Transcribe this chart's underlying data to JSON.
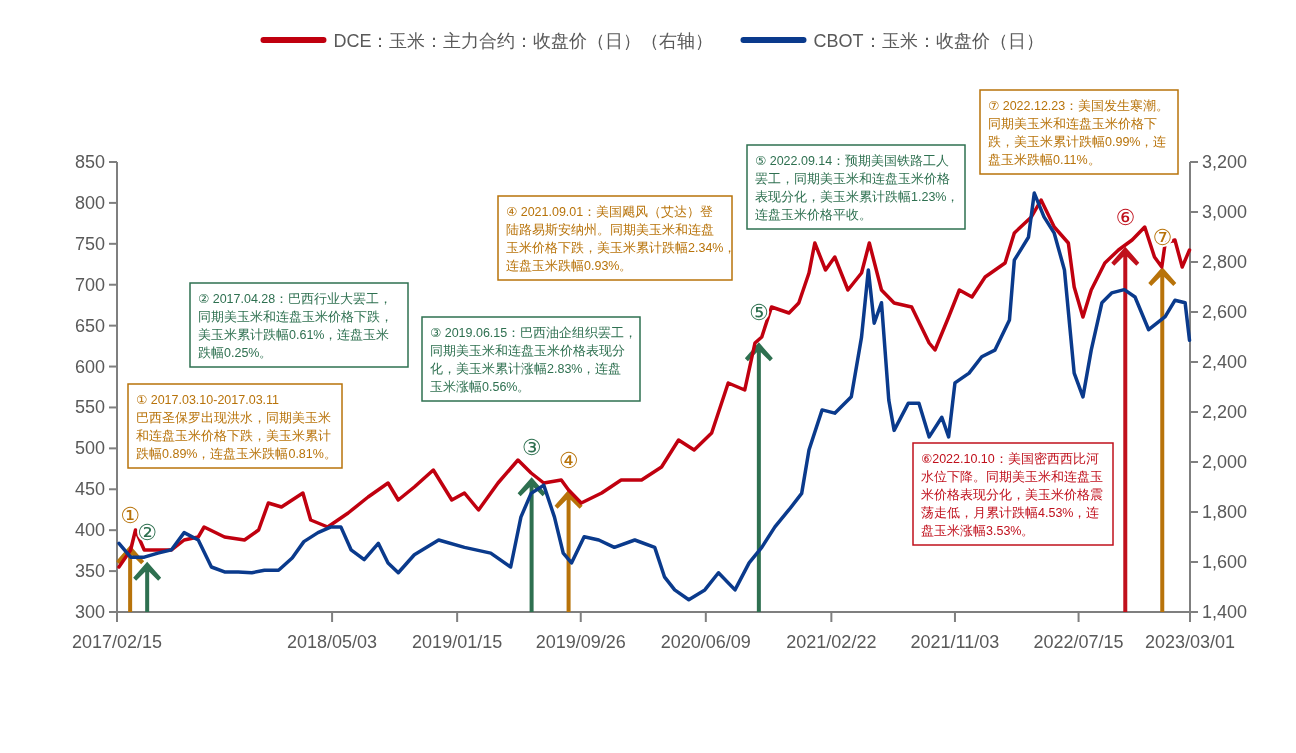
{
  "chart_data": {
    "type": "line",
    "legend": "top",
    "xlim": [
      "2017-02-15",
      "2023-03-01"
    ],
    "xticks": [
      {
        "value": "2017-02-15",
        "label": "2017/02/15"
      },
      {
        "value": "2018-05-03",
        "label": "2018/05/03"
      },
      {
        "value": "2019-01-15",
        "label": "2019/01/15"
      },
      {
        "value": "2019-09-26",
        "label": "2019/09/26"
      },
      {
        "value": "2020-06-09",
        "label": "2020/06/09"
      },
      {
        "value": "2021-02-22",
        "label": "2021/02/22"
      },
      {
        "value": "2021-11-03",
        "label": "2021/11/03"
      },
      {
        "value": "2022-07-15",
        "label": "2022/07/15"
      },
      {
        "value": "2023-03-01",
        "label": "2023/03/01"
      }
    ],
    "ylim": [
      300,
      850
    ],
    "yticks": [
      300,
      350,
      400,
      450,
      500,
      550,
      600,
      650,
      700,
      750,
      800,
      850
    ],
    "y2lim": [
      1400,
      3200
    ],
    "y2ticks": [
      {
        "value": 1400,
        "label": "1,400"
      },
      {
        "value": 1600,
        "label": "1,600"
      },
      {
        "value": 1800,
        "label": "1,800"
      },
      {
        "value": 2000,
        "label": "2,000"
      },
      {
        "value": 2200,
        "label": "2,200"
      },
      {
        "value": 2400,
        "label": "2,400"
      },
      {
        "value": 2600,
        "label": "2,600"
      },
      {
        "value": 2800,
        "label": "2,800"
      },
      {
        "value": 3000,
        "label": "3,000"
      },
      {
        "value": 3200,
        "label": "3,200"
      }
    ],
    "series": [
      {
        "name": "DCE：玉米：主力合约：收盘价（日）（右轴）",
        "color": "#c0000f",
        "axis": "y2",
        "x": [
          "2017-02-19",
          "2017-03-15",
          "2017-03-25",
          "2017-04-12",
          "2017-05-10",
          "2017-06-07",
          "2017-07-03",
          "2017-08-01",
          "2017-08-13",
          "2017-09-24",
          "2017-11-04",
          "2017-12-03",
          "2017-12-23",
          "2018-01-19",
          "2018-03-04",
          "2018-03-20",
          "2018-04-24",
          "2018-06-05",
          "2018-07-16",
          "2018-08-26",
          "2018-09-16",
          "2018-10-19",
          "2018-11-27",
          "2019-01-04",
          "2019-01-30",
          "2019-02-28",
          "2019-04-09",
          "2019-05-20",
          "2019-06-16",
          "2019-07-12",
          "2019-08-17",
          "2019-09-01",
          "2019-09-27",
          "2019-11-08",
          "2019-12-18",
          "2020-01-29",
          "2020-03-10",
          "2020-04-14",
          "2020-05-16",
          "2020-06-21",
          "2020-07-25",
          "2020-08-28",
          "2020-09-18",
          "2020-10-02",
          "2020-10-22",
          "2020-11-27",
          "2020-12-17",
          "2021-01-07",
          "2021-01-19",
          "2021-02-10",
          "2021-03-01",
          "2021-03-28",
          "2021-04-25",
          "2021-05-11",
          "2021-06-05",
          "2021-07-01",
          "2021-08-06",
          "2021-09-11",
          "2021-09-23",
          "2021-10-21",
          "2021-11-12",
          "2021-12-08",
          "2022-01-04",
          "2022-02-14",
          "2022-03-05",
          "2022-04-09",
          "2022-04-29",
          "2022-05-26",
          "2022-06-24",
          "2022-07-06",
          "2022-07-24",
          "2022-08-10",
          "2022-09-07",
          "2022-10-05",
          "2022-11-02",
          "2022-11-28",
          "2022-12-18",
          "2023-01-02",
          "2023-01-09",
          "2023-01-29",
          "2023-02-13",
          "2023-02-28"
        ],
        "values": [
          1580,
          1648,
          1728,
          1648,
          1648,
          1648,
          1688,
          1700,
          1740,
          1700,
          1688,
          1728,
          1836,
          1820,
          1876,
          1768,
          1740,
          1796,
          1860,
          1916,
          1848,
          1900,
          1968,
          1848,
          1876,
          1808,
          1916,
          2008,
          1956,
          1916,
          1928,
          1888,
          1836,
          1876,
          1928,
          1928,
          1980,
          2088,
          2048,
          2116,
          2316,
          2288,
          2476,
          2500,
          2620,
          2596,
          2636,
          2756,
          2876,
          2768,
          2820,
          2688,
          2756,
          2876,
          2688,
          2636,
          2620,
          2476,
          2448,
          2580,
          2688,
          2660,
          2740,
          2796,
          2916,
          2980,
          3048,
          2940,
          2876,
          2700,
          2580,
          2688,
          2796,
          2848,
          2888,
          2940,
          2820,
          2780,
          2876,
          2888,
          2780,
          2848
        ]
      },
      {
        "name": "CBOT：玉米：收盘价（日）",
        "color": "#0a3a8c",
        "x": [
          "2017-02-19",
          "2017-03-15",
          "2017-04-12",
          "2017-05-10",
          "2017-06-07",
          "2017-07-03",
          "2017-08-01",
          "2017-08-28",
          "2017-09-24",
          "2017-10-22",
          "2017-11-19",
          "2017-12-15",
          "2018-01-13",
          "2018-02-10",
          "2018-03-06",
          "2018-04-04",
          "2018-05-01",
          "2018-05-21",
          "2018-06-11",
          "2018-07-08",
          "2018-08-06",
          "2018-08-26",
          "2018-09-16",
          "2018-10-19",
          "2018-12-08",
          "2019-01-30",
          "2019-03-25",
          "2019-05-05",
          "2019-05-26",
          "2019-06-16",
          "2019-07-12",
          "2019-08-03",
          "2019-08-21",
          "2019-09-07",
          "2019-10-03",
          "2019-11-02",
          "2019-12-04",
          "2020-01-15",
          "2020-02-25",
          "2020-03-16",
          "2020-04-06",
          "2020-05-05",
          "2020-06-07",
          "2020-07-05",
          "2020-08-08",
          "2020-09-06",
          "2020-10-02",
          "2020-10-29",
          "2020-11-27",
          "2020-12-23",
          "2021-01-07",
          "2021-02-03",
          "2021-03-01",
          "2021-04-04",
          "2021-04-25",
          "2021-05-09",
          "2021-05-21",
          "2021-06-05",
          "2021-06-20",
          "2021-07-01",
          "2021-07-30",
          "2021-08-21",
          "2021-09-11",
          "2021-10-07",
          "2021-10-21",
          "2021-11-03",
          "2021-12-02",
          "2021-12-28",
          "2022-01-24",
          "2022-02-23",
          "2022-03-05",
          "2022-04-03",
          "2022-04-15",
          "2022-05-05",
          "2022-05-26",
          "2022-06-16",
          "2022-07-06",
          "2022-07-24",
          "2022-08-10",
          "2022-09-01",
          "2022-09-21",
          "2022-10-17",
          "2022-11-08",
          "2022-12-06",
          "2023-01-09",
          "2023-01-29",
          "2023-02-19",
          "2023-02-28"
        ],
        "values": [
          384,
          367,
          367,
          372,
          376,
          397,
          388,
          355,
          349,
          349,
          348,
          351,
          351,
          366,
          386,
          397,
          404,
          404,
          376,
          364,
          384,
          360,
          348,
          370,
          388,
          379,
          372,
          355,
          416,
          445,
          455,
          416,
          372,
          360,
          392,
          388,
          379,
          388,
          379,
          343,
          327,
          315,
          327,
          348,
          327,
          360,
          379,
          404,
          425,
          445,
          498,
          547,
          543,
          563,
          636,
          718,
          653,
          678,
          559,
          522,
          555,
          555,
          514,
          538,
          514,
          580,
          592,
          612,
          620,
          657,
          730,
          758,
          812,
          783,
          763,
          718,
          592,
          563,
          620,
          678,
          690,
          694,
          685,
          645,
          661,
          681,
          678,
          632
        ]
      }
    ],
    "annotations": [
      "① 2017.03.10-2017.03.11\n巴西圣保罗出现洪水，同期美玉米和连盘玉米价格下跌，美玉米累计跌幅0.89%，连盘玉米跌幅0.81%。",
      "② 2017.04.28：巴西行业大罢工，同期美玉米和连盘玉米价格下跌，美玉米累计跌幅0.61%，连盘玉米跌幅0.25%。",
      "③ 2019.06.15：巴西油企组织罢工，同期美玉米和连盘玉米价格表现分化，美玉米累计涨幅2.83%，连盘玉米涨幅0.56%。",
      "④ 2021.09.01：美国飓风（艾达）登陆路易斯安纳州。同期美玉米和连盘玉米价格下跌，美玉米累计跌幅2.34%，连盘玉米跌幅0.93%。",
      "⑤ 2022.09.14：预期美国铁路工人罢工，同期美玉米和连盘玉米价格表现分化，美玉米累计跌幅1.23%，连盘玉米价格平收。",
      "⑥2022.10.10：美国密西西比河水位下降。同期美玉米和连盘玉米价格表现分化，美玉米价格震荡走低，月累计跌幅4.53%，连盘玉米涨幅3.53%。",
      "⑦ 2022.12.23：美国发生寒潮。同期美玉米和连盘玉米价格下跌，美玉米累计跌幅0.99%，连盘玉米跌幅0.11%。",
      {
        "text": "①",
        "x": "2017-03-14",
        "y": 384
      },
      {
        "text": "②",
        "x": "2017-04-18",
        "y": 364
      },
      {
        "text": "③",
        "x": "2019-06-17",
        "y": 467
      },
      {
        "text": "④",
        "x": "2019-09-01",
        "y": 452
      },
      {
        "text": "⑤",
        "x": "2020-09-26",
        "y": 632
      },
      {
        "text": "⑥",
        "x": "2022-10-19",
        "y": 749
      },
      {
        "text": "⑦",
        "x": "2023-01-03",
        "y": 724
      }
    ]
  }
}
